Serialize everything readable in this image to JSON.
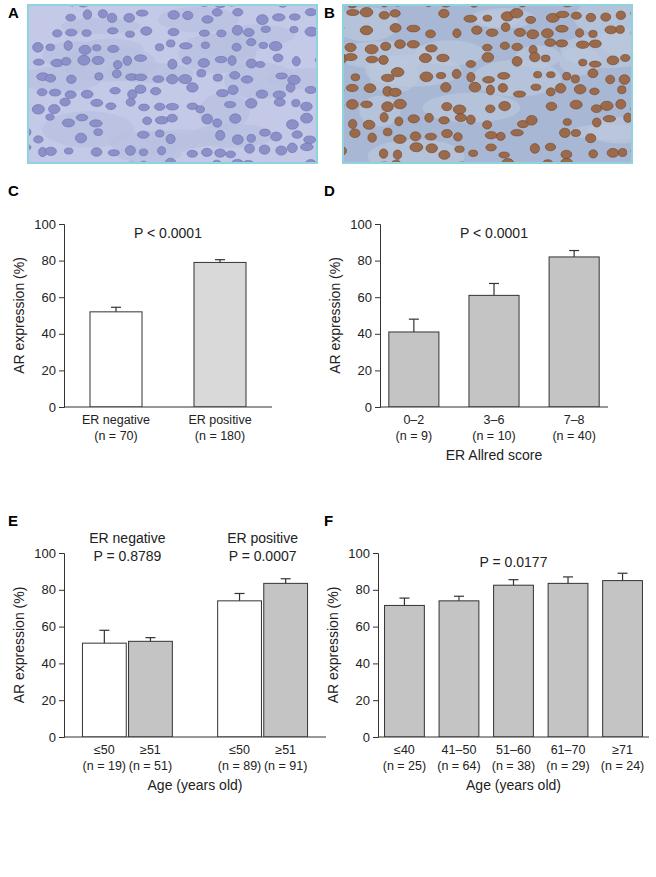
{
  "images": [
    {
      "label": "A"
    },
    {
      "label": "B"
    }
  ],
  "chart_data": [
    {
      "type": "bar",
      "title": "C",
      "annotations": [
        "P < 0.0001"
      ],
      "categories": [
        "ER negative\n(n = 70)",
        "ER positive\n(n = 180)"
      ],
      "values": [
        52,
        79
      ],
      "errors": [
        2.5,
        1.5
      ],
      "colors": [
        "#ffffff",
        "#d9d9d9"
      ],
      "ylabel": "AR expression (%)",
      "ylim": [
        0,
        100
      ],
      "yticks": [
        0,
        20,
        40,
        60,
        80,
        100
      ]
    },
    {
      "type": "bar",
      "title": "D",
      "annotations": [
        "P < 0.0001"
      ],
      "categories": [
        "0–2\n(n = 9)",
        "3–6\n(n = 10)",
        "7–8\n(n = 40)"
      ],
      "values": [
        41,
        61,
        82
      ],
      "errors": [
        7,
        6.5,
        3.5
      ],
      "color": "#c4c4c4",
      "xlabel": "ER Allred score",
      "ylabel": "AR expression (%)",
      "ylim": [
        0,
        100
      ],
      "yticks": [
        0,
        20,
        40,
        60,
        80,
        100
      ]
    },
    {
      "type": "bar",
      "title": "E",
      "groups": [
        {
          "name": "ER negative",
          "annotation": "P = 0.8789",
          "span": [
            0,
            1
          ]
        },
        {
          "name": "ER positive",
          "annotation": "P = 0.0007",
          "span": [
            2,
            3
          ]
        }
      ],
      "categories": [
        "≤50\n(n = 19)",
        "≥51\n(n = 51)",
        "≤50\n(n = 89)",
        "≥51\n(n = 91)"
      ],
      "values": [
        51,
        52,
        74,
        83.5
      ],
      "errors": [
        7,
        2,
        4,
        2.5
      ],
      "colors": [
        "#ffffff",
        "#c4c4c4",
        "#ffffff",
        "#c4c4c4"
      ],
      "xlabel": "Age (years old)",
      "ylabel": "AR expression (%)",
      "ylim": [
        0,
        100
      ],
      "yticks": [
        0,
        20,
        40,
        60,
        80,
        100
      ]
    },
    {
      "type": "bar",
      "title": "F",
      "annotations": [
        "P = 0.0177"
      ],
      "categories": [
        "≤40\n(n = 25)",
        "41–50\n(n = 64)",
        "51–60\n(n = 38)",
        "61–70\n(n = 29)",
        "≥71\n(n = 24)"
      ],
      "values": [
        71.5,
        74,
        82.5,
        83.5,
        85
      ],
      "errors": [
        4,
        2.5,
        3,
        3.5,
        4
      ],
      "color": "#c4c4c4",
      "xlabel": "Age (years old)",
      "ylabel": "AR expression (%)",
      "ylim": [
        0,
        100
      ],
      "yticks": [
        0,
        20,
        40,
        60,
        80,
        100
      ]
    }
  ]
}
